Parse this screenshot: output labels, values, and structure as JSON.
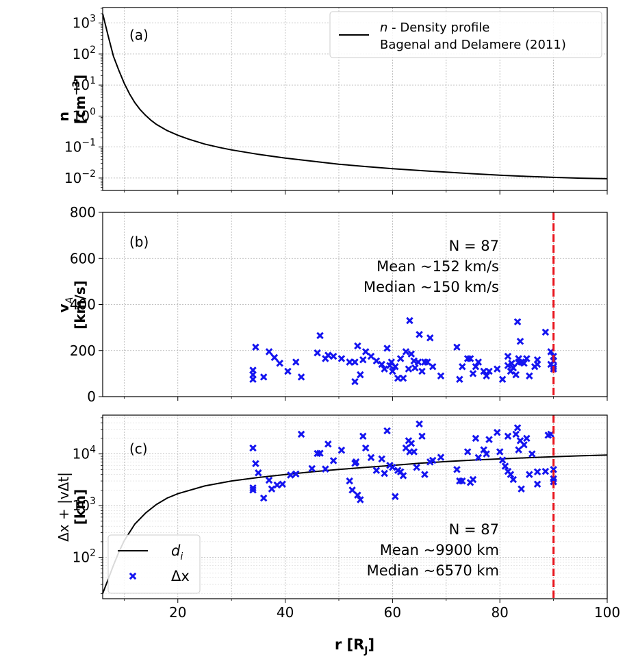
{
  "chart_data": [
    {
      "panel": "a",
      "type": "line",
      "panel_label": "(a)",
      "ylabel_lines": [
        "n",
        "[cm",
        "−3",
        "]"
      ],
      "yscale": "log",
      "xlim": [
        6,
        100
      ],
      "ylim_log10": [
        -2.4,
        3.5
      ],
      "grid": true,
      "y_ticks": [
        {
          "base": "10",
          "exp": "3",
          "value": 1000
        },
        {
          "base": "10",
          "exp": "2",
          "value": 100
        },
        {
          "base": "10",
          "exp": "1",
          "value": 10
        },
        {
          "base": "10",
          "exp": "0",
          "value": 1
        },
        {
          "base": "10",
          "exp": "−1",
          "value": 0.1
        },
        {
          "base": "10",
          "exp": "−2",
          "value": 0.01
        }
      ],
      "legend": {
        "placement": "top-right",
        "entry_italic": "n",
        "entry_rest": " - Density profile",
        "entry_line2": "Bagenal and Delamere (2011)"
      },
      "series": [
        {
          "color": "#000000",
          "x": [
            6,
            7,
            8,
            9,
            10,
            11,
            12,
            13,
            14,
            15,
            16,
            18,
            20,
            22,
            25,
            28,
            30,
            35,
            40,
            45,
            50,
            55,
            60,
            65,
            70,
            75,
            80,
            85,
            90,
            95,
            100
          ],
          "y": [
            2000,
            400,
            85,
            30,
            11.5,
            5.2,
            2.7,
            1.6,
            1.05,
            0.73,
            0.54,
            0.34,
            0.24,
            0.18,
            0.125,
            0.095,
            0.081,
            0.058,
            0.044,
            0.035,
            0.028,
            0.0235,
            0.02,
            0.0175,
            0.0155,
            0.0138,
            0.0124,
            0.0113,
            0.0105,
            0.0099,
            0.0095
          ]
        }
      ]
    },
    {
      "panel": "b",
      "type": "scatter",
      "panel_label": "(b)",
      "ylabel_main": "v",
      "ylabel_sub": "A",
      "ylabel_line2": "[km/s]",
      "xlim": [
        6,
        100
      ],
      "ylim": [
        0,
        800
      ],
      "grid": true,
      "y_ticks": [
        "0",
        "200",
        "400",
        "600",
        "800"
      ],
      "annotation": [
        "N = 87",
        "Mean ~152 km/s",
        "Median ~150 km/s"
      ],
      "vline": {
        "x": 90,
        "color": "#e8141c"
      },
      "marker_color": "#1414f0",
      "points": [
        [
          34,
          75
        ],
        [
          34,
          95
        ],
        [
          34,
          115
        ],
        [
          34.5,
          215
        ],
        [
          36,
          85
        ],
        [
          37,
          195
        ],
        [
          38,
          170
        ],
        [
          39,
          145
        ],
        [
          40.5,
          110
        ],
        [
          42,
          150
        ],
        [
          43,
          85
        ],
        [
          46,
          190
        ],
        [
          46.5,
          265
        ],
        [
          47.5,
          165
        ],
        [
          48,
          180
        ],
        [
          49,
          175
        ],
        [
          50.5,
          165
        ],
        [
          52,
          150
        ],
        [
          53,
          65
        ],
        [
          53,
          150
        ],
        [
          53.5,
          220
        ],
        [
          54,
          95
        ],
        [
          54.5,
          160
        ],
        [
          55,
          195
        ],
        [
          56,
          175
        ],
        [
          57,
          155
        ],
        [
          58,
          140
        ],
        [
          58.5,
          120
        ],
        [
          59,
          210
        ],
        [
          59.5,
          135
        ],
        [
          60,
          110
        ],
        [
          60.5,
          130
        ],
        [
          61,
          80
        ],
        [
          61.5,
          165
        ],
        [
          62,
          80
        ],
        [
          62.5,
          195
        ],
        [
          63,
          120
        ],
        [
          63.2,
          330
        ],
        [
          63.5,
          185
        ],
        [
          64,
          155
        ],
        [
          64.2,
          125
        ],
        [
          65,
          270
        ],
        [
          65.5,
          110
        ],
        [
          66,
          150
        ],
        [
          67,
          255
        ],
        [
          67.5,
          130
        ],
        [
          69,
          90
        ],
        [
          72,
          215
        ],
        [
          72.5,
          75
        ],
        [
          73,
          130
        ],
        [
          74,
          165
        ],
        [
          74.5,
          165
        ],
        [
          75,
          100
        ],
        [
          75.5,
          130
        ],
        [
          76,
          150
        ],
        [
          77,
          110
        ],
        [
          77.5,
          90
        ],
        [
          78,
          110
        ],
        [
          79.5,
          120
        ],
        [
          80.5,
          75
        ],
        [
          81.5,
          135
        ],
        [
          81.5,
          175
        ],
        [
          82,
          110
        ],
        [
          82.5,
          125
        ],
        [
          83,
          95
        ],
        [
          83.3,
          325
        ],
        [
          83.5,
          165
        ],
        [
          83.8,
          240
        ],
        [
          84,
          150
        ],
        [
          84.5,
          145
        ],
        [
          85,
          165
        ],
        [
          85.5,
          90
        ],
        [
          86.5,
          130
        ],
        [
          87,
          140
        ],
        [
          87,
          160
        ],
        [
          88.5,
          280
        ],
        [
          89.5,
          140
        ],
        [
          89.5,
          195
        ],
        [
          90,
          175
        ],
        [
          90,
          120
        ],
        [
          90,
          130
        ],
        [
          90,
          155
        ],
        [
          83.5,
          150
        ],
        [
          82.2,
          145
        ],
        [
          66.5,
          150
        ],
        [
          64.8,
          150
        ],
        [
          59.8,
          150
        ]
      ]
    },
    {
      "panel": "c",
      "type": "scatter",
      "panel_label": "(c)",
      "ylabel_line1_text": "Δx + |vΔt|",
      "ylabel_line2": "[km]",
      "yscale": "log",
      "xlim": [
        6,
        100
      ],
      "ylim_log10": [
        1.2,
        4.75
      ],
      "grid": true,
      "x_ticks": [
        "20",
        "40",
        "60",
        "80",
        "100"
      ],
      "xlabel_main": "r [R",
      "xlabel_sub": "J",
      "xlabel_close": "]",
      "y_ticks": [
        {
          "base": "10",
          "exp": "2",
          "value": 100
        },
        {
          "base": "10",
          "exp": "3",
          "value": 1000
        },
        {
          "base": "10",
          "exp": "4",
          "value": 10000
        }
      ],
      "annotation": [
        "N = 87",
        "Mean ~9900 km",
        "Median ~6570 km"
      ],
      "legend": {
        "placement": "lower-left",
        "line_label": "d",
        "line_label_sub": "i",
        "marker_label": "Δx"
      },
      "vline": {
        "x": 90,
        "color": "#e8141c"
      },
      "marker_color": "#1414f0",
      "curve": {
        "color": "#000000",
        "x": [
          6,
          7,
          8,
          9,
          10,
          12,
          14,
          16,
          18,
          20,
          25,
          30,
          35,
          40,
          45,
          50,
          55,
          60,
          65,
          70,
          75,
          80,
          85,
          90,
          95,
          100
        ],
        "y": [
          20,
          37,
          70,
          125,
          210,
          440,
          720,
          1050,
          1400,
          1700,
          2400,
          3000,
          3500,
          4000,
          4500,
          5000,
          5500,
          6000,
          6600,
          7100,
          7600,
          8000,
          8400,
          8800,
          9200,
          9500
        ]
      },
      "points": [
        [
          34,
          13000
        ],
        [
          34,
          2200
        ],
        [
          34,
          2000
        ],
        [
          34.5,
          6500
        ],
        [
          35,
          4300
        ],
        [
          36,
          1400
        ],
        [
          37,
          3100
        ],
        [
          37.5,
          2100
        ],
        [
          38.5,
          2500
        ],
        [
          39.5,
          2600
        ],
        [
          41,
          3900
        ],
        [
          42,
          4100
        ],
        [
          43,
          24000
        ],
        [
          45,
          5200
        ],
        [
          46,
          10200
        ],
        [
          46.5,
          10300
        ],
        [
          47.5,
          5100
        ],
        [
          48,
          15500
        ],
        [
          49,
          7400
        ],
        [
          50.5,
          11800
        ],
        [
          52,
          3000
        ],
        [
          52.5,
          2000
        ],
        [
          53,
          6600
        ],
        [
          53.2,
          7000
        ],
        [
          53.5,
          1600
        ],
        [
          54,
          1300
        ],
        [
          54.5,
          22000
        ],
        [
          55,
          13000
        ],
        [
          56,
          8500
        ],
        [
          57,
          4800
        ],
        [
          58,
          8000
        ],
        [
          58.5,
          4200
        ],
        [
          59,
          28000
        ],
        [
          59.5,
          6000
        ],
        [
          60,
          5500
        ],
        [
          60.5,
          1500
        ],
        [
          61,
          4800
        ],
        [
          61.5,
          4500
        ],
        [
          62,
          3800
        ],
        [
          62.5,
          13000
        ],
        [
          63,
          18000
        ],
        [
          63.2,
          11000
        ],
        [
          63.5,
          16000
        ],
        [
          64,
          11000
        ],
        [
          64.5,
          5500
        ],
        [
          65,
          38000
        ],
        [
          65.5,
          22000
        ],
        [
          66,
          4000
        ],
        [
          67,
          7000
        ],
        [
          67.5,
          7500
        ],
        [
          69,
          8600
        ],
        [
          72,
          5000
        ],
        [
          72.5,
          3000
        ],
        [
          73,
          3000
        ],
        [
          74,
          11000
        ],
        [
          74.5,
          2800
        ],
        [
          75,
          3200
        ],
        [
          75.5,
          20000
        ],
        [
          76,
          8500
        ],
        [
          77,
          12000
        ],
        [
          77.5,
          10000
        ],
        [
          78,
          19000
        ],
        [
          79.5,
          26000
        ],
        [
          80,
          11000
        ],
        [
          80.5,
          7600
        ],
        [
          81,
          5800
        ],
        [
          81.5,
          4600
        ],
        [
          81.5,
          22000
        ],
        [
          82,
          4000
        ],
        [
          82.5,
          3200
        ],
        [
          83,
          24000
        ],
        [
          83.3,
          32000
        ],
        [
          83.5,
          12000
        ],
        [
          83.8,
          18000
        ],
        [
          84,
          2100
        ],
        [
          84.5,
          15000
        ],
        [
          85,
          20000
        ],
        [
          85.5,
          4000
        ],
        [
          86,
          10000
        ],
        [
          87,
          2600
        ],
        [
          87,
          4500
        ],
        [
          88.5,
          4600
        ],
        [
          89,
          23000
        ],
        [
          89.5,
          24000
        ],
        [
          90,
          5000
        ],
        [
          90,
          3300
        ],
        [
          90,
          2900
        ]
      ]
    }
  ]
}
